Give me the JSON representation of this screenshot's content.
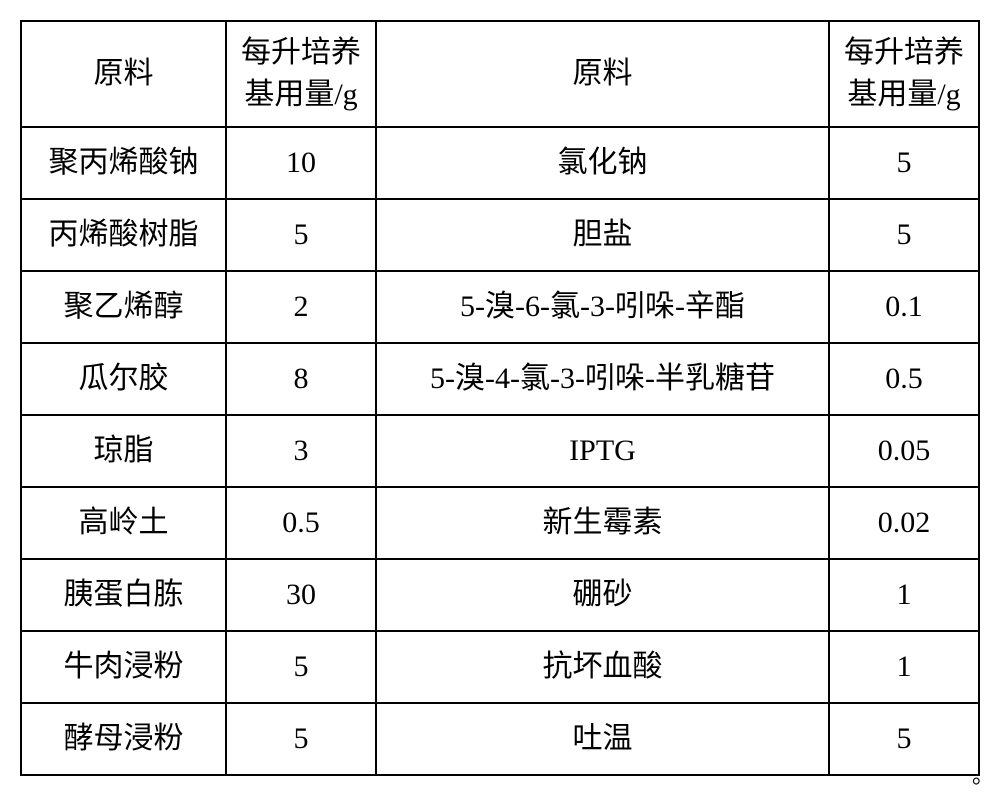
{
  "table": {
    "columns": [
      {
        "label": "原料"
      },
      {
        "label": "每升培养\n基用量/g"
      },
      {
        "label": "原料"
      },
      {
        "label": "每升培养\n基用量/g"
      }
    ],
    "rows": [
      {
        "c1": "聚丙烯酸钠",
        "c2": "10",
        "c3": "氯化钠",
        "c4": "5"
      },
      {
        "c1": "丙烯酸树脂",
        "c2": "5",
        "c3": "胆盐",
        "c4": "5"
      },
      {
        "c1": "聚乙烯醇",
        "c2": "2",
        "c3": "5-溴-6-氯-3-吲哚-辛酯",
        "c4": "0.1"
      },
      {
        "c1": "瓜尔胶",
        "c2": "8",
        "c3": "5-溴-4-氯-3-吲哚-半乳糖苷",
        "c4": "0.5"
      },
      {
        "c1": "琼脂",
        "c2": "3",
        "c3": "IPTG",
        "c4": "0.05"
      },
      {
        "c1": "高岭土",
        "c2": "0.5",
        "c3": "新生霉素",
        "c4": "0.02"
      },
      {
        "c1": "胰蛋白胨",
        "c2": "30",
        "c3": "硼砂",
        "c4": "1"
      },
      {
        "c1": "牛肉浸粉",
        "c2": "5",
        "c3": "抗坏血酸",
        "c4": "1"
      },
      {
        "c1": "酵母浸粉",
        "c2": "5",
        "c3": "吐温",
        "c4": "5"
      }
    ]
  },
  "trailing_period": "。",
  "style": {
    "border_color": "#000000",
    "background_color": "#ffffff",
    "font_family": "SimSun",
    "cell_fontsize": 30
  }
}
